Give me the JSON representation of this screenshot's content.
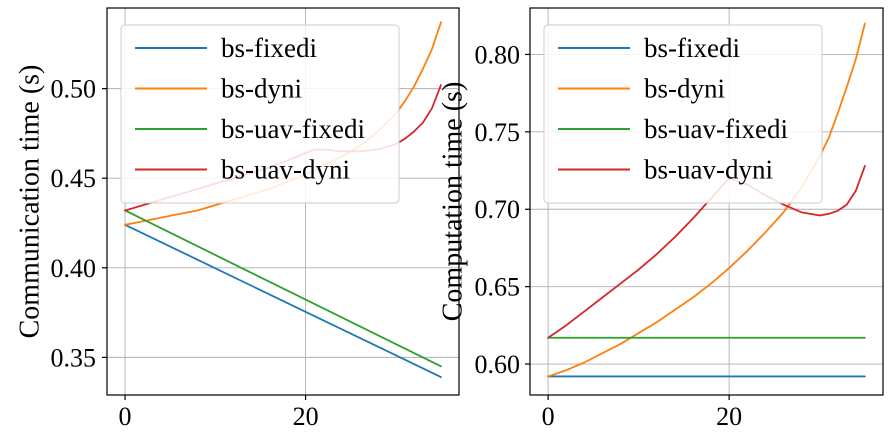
{
  "chart_data": [
    {
      "type": "line",
      "title": "",
      "xlabel": "",
      "ylabel": "Communication time (s)",
      "xlim": [
        -2,
        37
      ],
      "ylim": [
        0.329,
        0.545
      ],
      "xticks": [
        0,
        20
      ],
      "xtick_labels": [
        "0",
        "20"
      ],
      "yticks": [
        0.35,
        0.4,
        0.45,
        0.5
      ],
      "ytick_labels": [
        "0.35",
        "0.40",
        "0.45",
        "0.50"
      ],
      "grid": true,
      "legend_position": "top-left",
      "series": [
        {
          "name": "bs-fixedi",
          "color": "#1f77b4",
          "x": [
            0,
            35
          ],
          "y": [
            0.424,
            0.339
          ]
        },
        {
          "name": "bs-dyni",
          "color": "#ff7f0e",
          "x": [
            0,
            2,
            4,
            6,
            8,
            10,
            12,
            14,
            16,
            18,
            20,
            22,
            24,
            26,
            28,
            30,
            31,
            32,
            33,
            34,
            35
          ],
          "y": [
            0.424,
            0.426,
            0.428,
            0.43,
            0.432,
            0.435,
            0.438,
            0.441,
            0.444,
            0.448,
            0.452,
            0.457,
            0.462,
            0.468,
            0.476,
            0.486,
            0.493,
            0.501,
            0.511,
            0.522,
            0.537
          ]
        },
        {
          "name": "bs-uav-fixedi",
          "color": "#2ca02c",
          "x": [
            0,
            35
          ],
          "y": [
            0.432,
            0.345
          ]
        },
        {
          "name": "bs-uav-dyni",
          "color": "#d62728",
          "x": [
            0,
            2,
            4,
            6,
            8,
            10,
            12,
            14,
            16,
            18,
            20,
            21,
            22,
            24,
            26,
            28,
            30,
            31,
            32,
            33,
            34,
            35
          ],
          "y": [
            0.432,
            0.435,
            0.438,
            0.441,
            0.444,
            0.447,
            0.45,
            0.453,
            0.456,
            0.46,
            0.464,
            0.466,
            0.466,
            0.465,
            0.465,
            0.466,
            0.469,
            0.472,
            0.476,
            0.481,
            0.489,
            0.502
          ]
        }
      ]
    },
    {
      "type": "line",
      "title": "",
      "xlabel": "",
      "ylabel": "Computation time (s)",
      "xlim": [
        -2,
        37
      ],
      "ylim": [
        0.58,
        0.83
      ],
      "xticks": [
        0,
        20
      ],
      "xtick_labels": [
        "0",
        "20"
      ],
      "yticks": [
        0.6,
        0.65,
        0.7,
        0.75,
        0.8
      ],
      "ytick_labels": [
        "0.60",
        "0.65",
        "0.70",
        "0.75",
        "0.80"
      ],
      "grid": true,
      "legend_position": "top-left",
      "series": [
        {
          "name": "bs-fixedi",
          "color": "#1f77b4",
          "x": [
            0,
            35
          ],
          "y": [
            0.592,
            0.592
          ]
        },
        {
          "name": "bs-dyni",
          "color": "#ff7f0e",
          "x": [
            0,
            2,
            4,
            6,
            8,
            10,
            12,
            14,
            16,
            18,
            20,
            22,
            24,
            26,
            28,
            30,
            31,
            32,
            33,
            34,
            35
          ],
          "y": [
            0.592,
            0.596,
            0.601,
            0.607,
            0.613,
            0.62,
            0.627,
            0.635,
            0.643,
            0.652,
            0.662,
            0.673,
            0.685,
            0.698,
            0.714,
            0.734,
            0.746,
            0.762,
            0.779,
            0.797,
            0.82
          ]
        },
        {
          "name": "bs-uav-fixedi",
          "color": "#2ca02c",
          "x": [
            0,
            35
          ],
          "y": [
            0.617,
            0.617
          ]
        },
        {
          "name": "bs-uav-dyni",
          "color": "#d62728",
          "x": [
            0,
            2,
            4,
            6,
            8,
            10,
            12,
            14,
            16,
            18,
            20,
            22,
            24,
            26,
            28,
            29,
            30,
            31,
            32,
            33,
            34,
            35
          ],
          "y": [
            0.617,
            0.625,
            0.634,
            0.643,
            0.652,
            0.661,
            0.671,
            0.682,
            0.694,
            0.707,
            0.72,
            0.716,
            0.709,
            0.703,
            0.698,
            0.697,
            0.696,
            0.697,
            0.699,
            0.703,
            0.712,
            0.728
          ]
        }
      ]
    }
  ]
}
